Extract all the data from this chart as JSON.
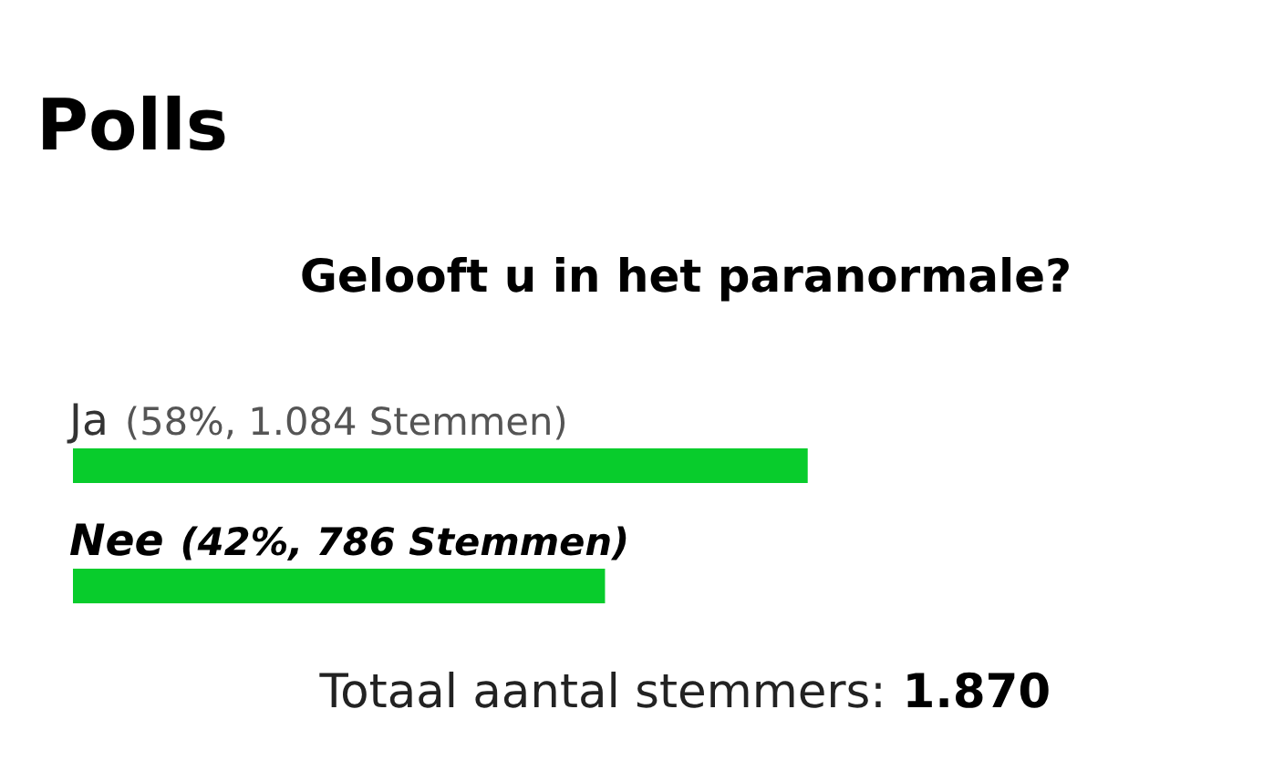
{
  "chart_data": {
    "type": "bar",
    "orientation": "horizontal",
    "title": "Polls",
    "subtitle": "Gelooft u in het paranormale?",
    "categories": [
      "Ja",
      "Nee"
    ],
    "values": [
      58,
      42
    ],
    "value_labels": [
      "(58%, 1.084 Stemmen)",
      "(42%, 786 Stemmen)"
    ],
    "color": "#08cc2c",
    "tick_labels": "y",
    "annotations": [
      "Totaal aantal stemmers:",
      "1.870"
    ]
  }
}
